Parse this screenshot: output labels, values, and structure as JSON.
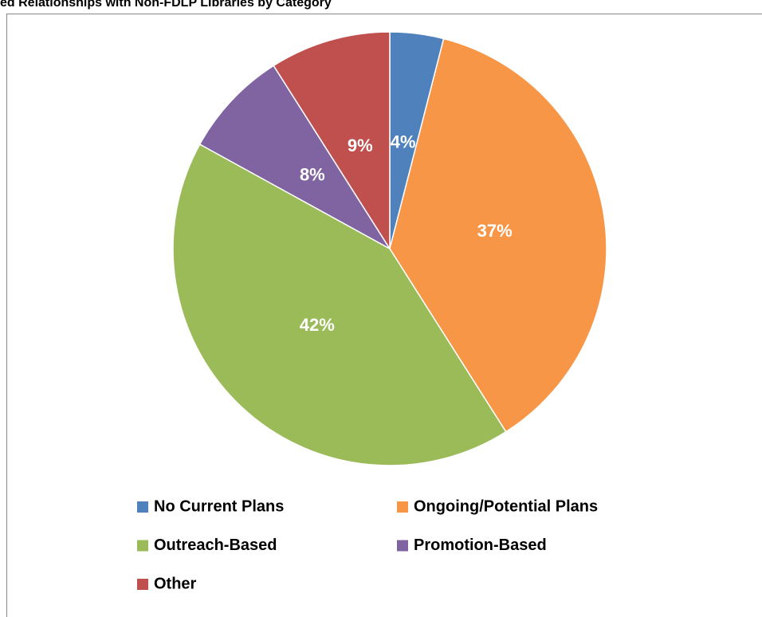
{
  "chart_data": {
    "type": "pie",
    "title": "ed Relationships with Non-FDLP Libraries by Category",
    "categories": [
      "No Current Plans",
      "Ongoing/Potential Plans",
      "Outreach-Based",
      "Promotion-Based",
      "Other"
    ],
    "values": [
      4,
      37,
      42,
      8,
      9
    ],
    "value_labels": [
      "4%",
      "37%",
      "42%",
      "8%",
      "9%"
    ],
    "colors": [
      "#4f81bd",
      "#f79646",
      "#9bbb59",
      "#8064a2",
      "#c0504d"
    ],
    "legend": "bottom"
  }
}
